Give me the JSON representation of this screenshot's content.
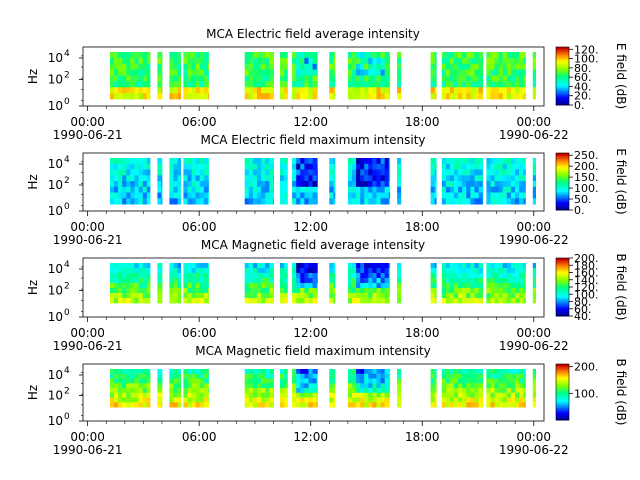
{
  "chart_data": [
    {
      "type": "heatmap",
      "title": "MCA  Electric field average intensity",
      "ylabel": "Hz",
      "yticks": [
        "10",
        "10",
        "10"
      ],
      "yexp": [
        "0",
        "2",
        "4"
      ],
      "xticks": [
        "00:00",
        "06:00",
        "12:00",
        "18:00",
        "00:00"
      ],
      "xdates": [
        "1990-06-21",
        "",
        "",
        "",
        "1990-06-22"
      ],
      "cbar_label": "E field (dB)",
      "cbar_ticks": [
        "0.",
        "20.",
        "40.",
        "60.",
        "80.",
        "100.",
        "120."
      ],
      "cbar_range": [
        0,
        125
      ]
    },
    {
      "type": "heatmap",
      "title": "MCA  Electric field maximum intensity",
      "ylabel": "Hz",
      "yticks": [
        "10",
        "10",
        "10"
      ],
      "yexp": [
        "0",
        "2",
        "4"
      ],
      "xticks": [
        "00:00",
        "06:00",
        "12:00",
        "18:00",
        "00:00"
      ],
      "xdates": [
        "1990-06-21",
        "",
        "",
        "",
        "1990-06-22"
      ],
      "cbar_label": "E field (dB)",
      "cbar_ticks": [
        "0.",
        "50.",
        "100.",
        "150.",
        "200.",
        "250."
      ],
      "cbar_range": [
        0,
        260
      ]
    },
    {
      "type": "heatmap",
      "title": "MCA  Magnetic field average intensity",
      "ylabel": "Hz",
      "yticks": [
        "10",
        "10",
        "10"
      ],
      "yexp": [
        "0",
        "2",
        "4"
      ],
      "xticks": [
        "00:00",
        "06:00",
        "12:00",
        "18:00",
        "00:00"
      ],
      "xdates": [
        "1990-06-21",
        "",
        "",
        "",
        "1990-06-22"
      ],
      "cbar_label": "B field (dB)",
      "cbar_ticks": [
        "40.",
        "60.",
        "80.",
        "100.",
        "120.",
        "140.",
        "160.",
        "180.",
        "200."
      ],
      "cbar_range": [
        40,
        200
      ]
    },
    {
      "type": "heatmap",
      "title": "MCA  Magnetic field maximum intensity",
      "ylabel": "Hz",
      "yticks": [
        "10",
        "10",
        "10"
      ],
      "yexp": [
        "0",
        "2",
        "4"
      ],
      "xticks": [
        "00:00",
        "06:00",
        "12:00",
        "18:00",
        "00:00"
      ],
      "xdates": [
        "1990-06-21",
        "",
        "",
        "",
        "1990-06-22"
      ],
      "cbar_label": "B field (dB)",
      "cbar_ticks": [
        "100.",
        "200."
      ],
      "cbar_range": [
        0,
        210
      ]
    }
  ]
}
